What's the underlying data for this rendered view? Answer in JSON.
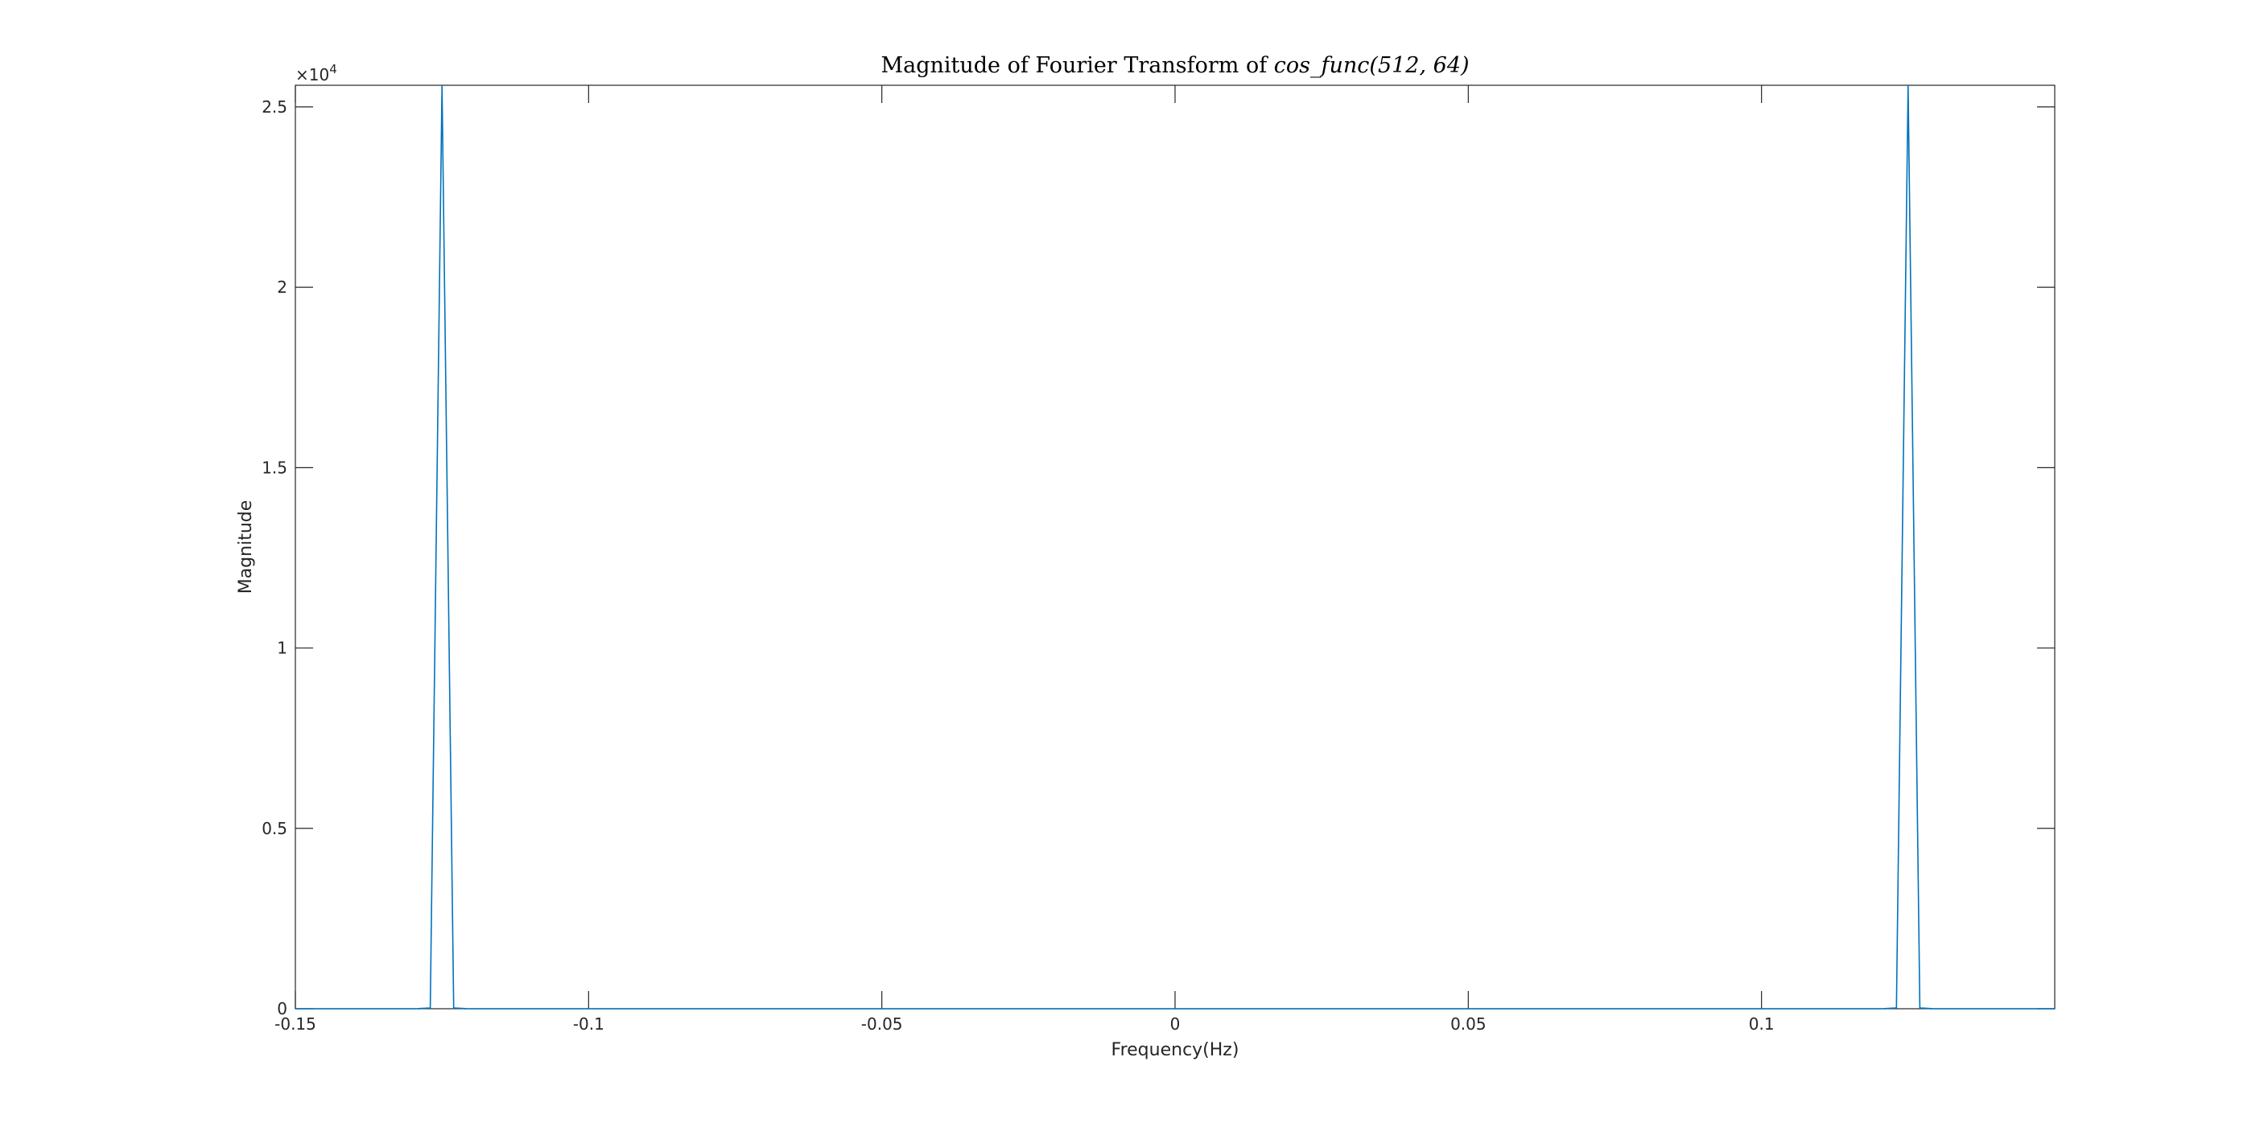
{
  "chart_data": {
    "type": "line",
    "title": {
      "prefix": "Magnitude of Fourier Transform of ",
      "math": "cos_func(512, 64)"
    },
    "xlabel": "Frequency(Hz)",
    "ylabel": "Magnitude",
    "y_exponent": {
      "base": "×10",
      "power": "4"
    },
    "xlim": [
      -0.15,
      0.15
    ],
    "ylim": [
      0,
      25600
    ],
    "grid": false,
    "x_ticks": [
      {
        "value": -0.15,
        "label": "-0.15"
      },
      {
        "value": -0.1,
        "label": "-0.1"
      },
      {
        "value": -0.05,
        "label": "-0.05"
      },
      {
        "value": 0,
        "label": "0"
      },
      {
        "value": 0.05,
        "label": "0.05"
      },
      {
        "value": 0.1,
        "label": "0.1"
      }
    ],
    "y_ticks": [
      {
        "value": 0,
        "label": "0"
      },
      {
        "value": 5000,
        "label": "0.5"
      },
      {
        "value": 10000,
        "label": "1"
      },
      {
        "value": 15000,
        "label": "1.5"
      },
      {
        "value": 20000,
        "label": "2"
      },
      {
        "value": 25000,
        "label": "2.5"
      }
    ],
    "series": [
      {
        "color": "#0072bd",
        "points": [
          [
            -0.15,
            0
          ],
          [
            -0.1289,
            0
          ],
          [
            -0.1289,
            5
          ],
          [
            -0.127,
            20
          ],
          [
            -0.125,
            25600
          ],
          [
            -0.123,
            20
          ],
          [
            -0.1211,
            5
          ],
          [
            -0.1211,
            0
          ],
          [
            0.1211,
            0
          ],
          [
            0.1211,
            5
          ],
          [
            0.123,
            20
          ],
          [
            0.125,
            25600
          ],
          [
            0.127,
            20
          ],
          [
            0.1289,
            5
          ],
          [
            0.1289,
            0
          ],
          [
            0.15,
            0
          ]
        ]
      }
    ]
  }
}
